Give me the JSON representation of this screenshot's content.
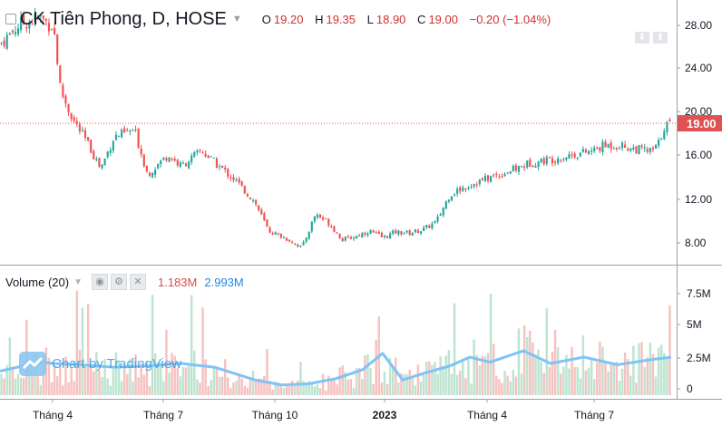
{
  "header": {
    "title": "CK Tiên Phong, D, HOSE",
    "ohlc": [
      {
        "k": "O",
        "v": "19.20"
      },
      {
        "k": "H",
        "v": "19.35"
      },
      {
        "k": "L",
        "v": "18.90"
      },
      {
        "k": "C",
        "v": "19.00"
      }
    ],
    "change": "−0.20 (−1.04%)"
  },
  "price_axis": {
    "ticks": [
      "28.00",
      "24.00",
      "20.00",
      "16.00",
      "12.00",
      "8.00"
    ],
    "last_price_label": "19.00"
  },
  "volume_legend": {
    "label": "Volume (20)",
    "value_volume": "1.183M",
    "value_ma": "2.993M"
  },
  "volume_axis": {
    "ticks": [
      "7.5M",
      "5M",
      "2.5M",
      "0"
    ]
  },
  "time_axis": {
    "ticks": [
      "Tháng 4",
      "Tháng 7",
      "Tháng 10",
      "2023",
      "Tháng 4",
      "Tháng 7"
    ]
  },
  "watermark": "Chart by TradingView",
  "colors": {
    "up": "#26a69a",
    "down": "#ef5350",
    "ma": "#7ec4f5",
    "price_line": "#e05252",
    "text": "#131722"
  },
  "chart_data": [
    {
      "type": "candlestick",
      "ylim": [
        6.5,
        29.9
      ],
      "x_range": [
        0,
        100
      ],
      "closing_trend": {
        "x": [
          0,
          3,
          6,
          8,
          9,
          10,
          11,
          13,
          15,
          17,
          20,
          22,
          25,
          27,
          30,
          32,
          35,
          38,
          40,
          43,
          45,
          47,
          49,
          51,
          53,
          55,
          57,
          59,
          61,
          63,
          65,
          67,
          69,
          71,
          73,
          75,
          77,
          79,
          82,
          85,
          88,
          90,
          92,
          94,
          96,
          97,
          98,
          99,
          100
        ],
        "y": [
          26.0,
          27.8,
          28.3,
          27.5,
          22.0,
          20.5,
          19.2,
          17.3,
          15.0,
          17.8,
          18.4,
          14.5,
          16.2,
          15.2,
          16.6,
          15.5,
          14.0,
          12.0,
          9.5,
          8.7,
          8.0,
          11.0,
          10.2,
          8.7,
          9.0,
          9.5,
          8.9,
          9.4,
          9.3,
          9.6,
          10.3,
          12.7,
          13.3,
          13.8,
          14.2,
          14.6,
          15.0,
          15.5,
          15.8,
          16.2,
          16.5,
          17.0,
          17.1,
          16.8,
          16.6,
          16.5,
          17.0,
          18.8,
          19.0
        ]
      },
      "last_price": 19.0
    },
    {
      "type": "bar",
      "name": "Volume (20)",
      "ylim": [
        0,
        10
      ],
      "ma_trend": {
        "x": [
          0,
          6,
          8,
          12,
          17,
          22,
          27,
          32,
          38,
          42,
          46,
          50,
          54,
          57,
          60,
          63,
          67,
          70,
          73,
          78,
          82,
          87,
          92,
          97,
          100
        ],
        "y": [
          1.9,
          2.6,
          2.5,
          2.4,
          2.2,
          2.3,
          2.5,
          2.2,
          1.2,
          0.8,
          0.9,
          1.3,
          2.0,
          3.3,
          1.2,
          1.7,
          2.3,
          3.0,
          2.6,
          3.5,
          2.5,
          3.0,
          2.4,
          2.8,
          3.0
        ]
      },
      "last_volume": 1.183,
      "last_ma": 2.993
    }
  ]
}
